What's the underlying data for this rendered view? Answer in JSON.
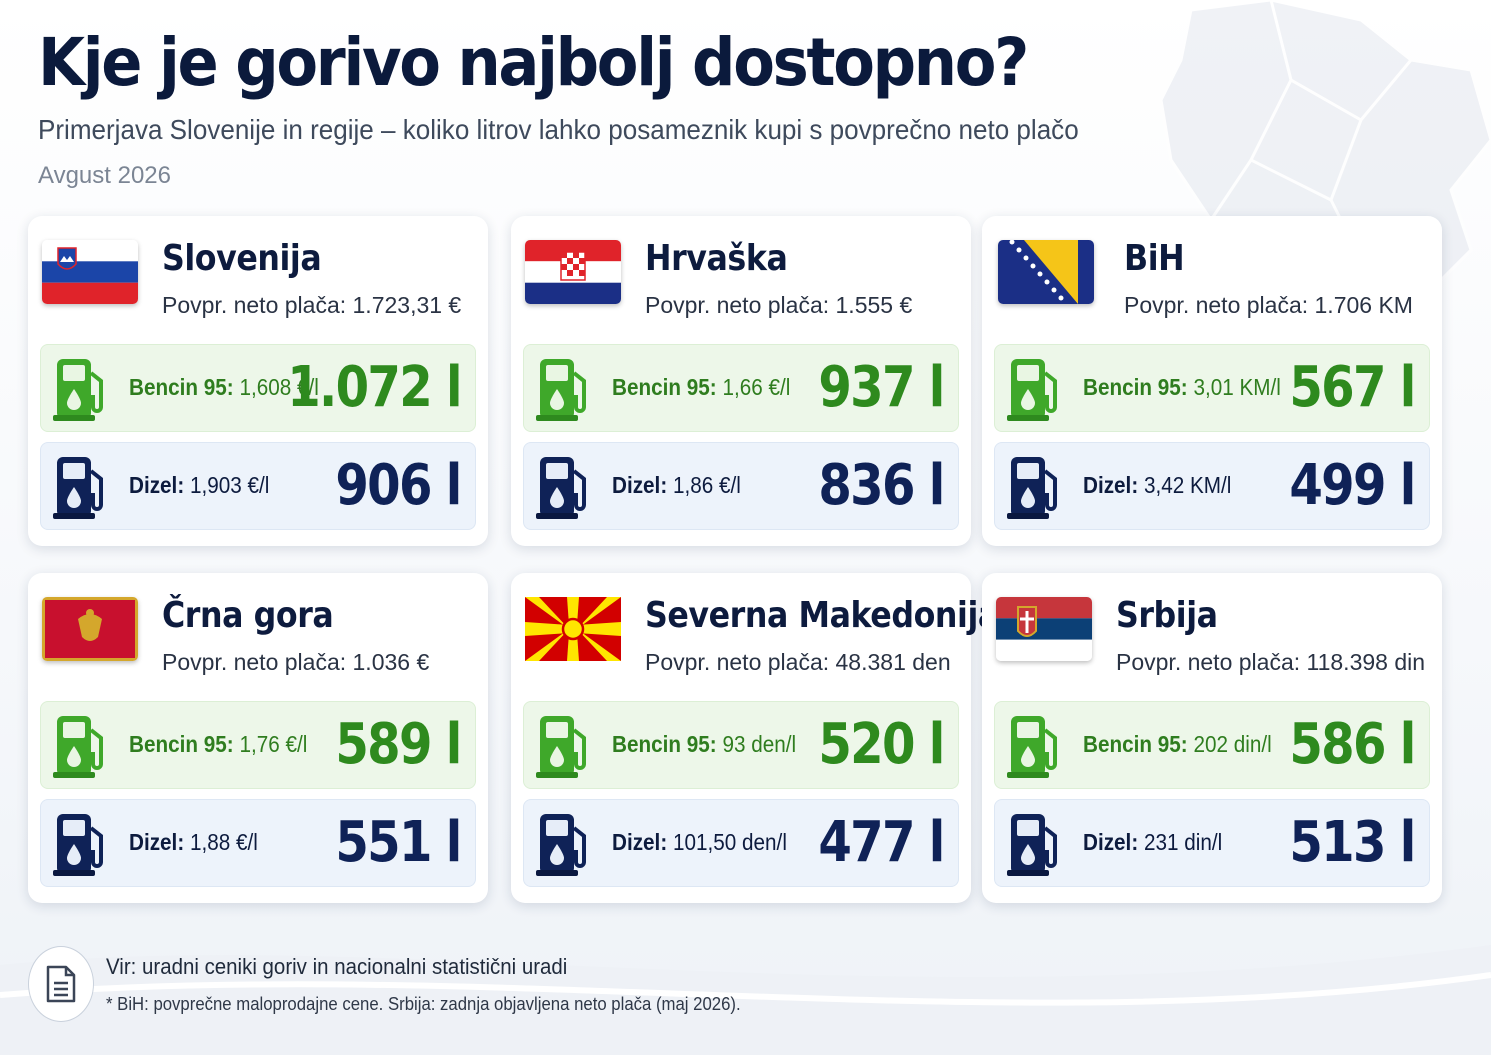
{
  "header": {
    "title": "Kje je gorivo najbolj dostopno?",
    "subtitle": "Primerjava Slovenije in regije – koliko litrov lahko posameznik kupi s povprečno neto plačo",
    "date": "Avgust 2026"
  },
  "colors": {
    "petrol_accent": "#2e8a1e",
    "diesel_accent": "#0f2257",
    "petrol_bg": "#edf7e9",
    "diesel_bg": "#edf3fb"
  },
  "countries": [
    {
      "name": "Slovenija",
      "flag_icon": "slovenia-flag-icon",
      "salary": "Povpr. neto plača: 1.723,31 €",
      "petrol": {
        "label": "Bencin 95:",
        "price": "1,608 €/l",
        "liters": "1.072 l"
      },
      "diesel": {
        "label": "Dizel:",
        "price": "1,903 €/l",
        "liters": "906 l"
      }
    },
    {
      "name": "Hrvaška",
      "flag_icon": "croatia-flag-icon",
      "salary": "Povpr. neto plača: 1.555 €",
      "petrol": {
        "label": "Bencin 95:",
        "price": "1,66 €/l",
        "liters": "937 l"
      },
      "diesel": {
        "label": "Dizel:",
        "price": "1,86 €/l",
        "liters": "836 l"
      }
    },
    {
      "name": "BiH",
      "flag_icon": "bosnia-flag-icon",
      "salary": "Povpr. neto plača: 1.706 KM",
      "petrol": {
        "label": "Bencin 95:",
        "price": "3,01 KM/l",
        "liters": "567 l"
      },
      "diesel": {
        "label": "Dizel:",
        "price": "3,42 KM/l",
        "liters": "499 l"
      }
    },
    {
      "name": "Črna gora",
      "flag_icon": "montenegro-flag-icon",
      "salary": "Povpr. neto plača: 1.036 €",
      "petrol": {
        "label": "Bencin 95:",
        "price": "1,76 €/l",
        "liters": "589 l"
      },
      "diesel": {
        "label": "Dizel:",
        "price": "1,88 €/l",
        "liters": "551 l"
      }
    },
    {
      "name": "Severna Makedonija",
      "flag_icon": "north-macedonia-flag-icon",
      "salary": "Povpr. neto plača: 48.381 den",
      "petrol": {
        "label": "Bencin 95:",
        "price": "93 den/l",
        "liters": "520 l"
      },
      "diesel": {
        "label": "Dizel:",
        "price": "101,50 den/l",
        "liters": "477 l"
      }
    },
    {
      "name": "Srbija",
      "flag_icon": "serbia-flag-icon",
      "salary": "Povpr. neto plača: 118.398 din",
      "petrol": {
        "label": "Bencin 95:",
        "price": "202 din/l",
        "liters": "586 l"
      },
      "diesel": {
        "label": "Dizel:",
        "price": "231 din/l",
        "liters": "513 l"
      }
    }
  ],
  "footer": {
    "icon": "document-icon",
    "source": "Vir: uradni ceniki goriv in nacionalni statistični uradi",
    "note": "* BiH: povprečne maloprodajne cene. Srbija: zadnja objavljena neto plača (maj 2026)."
  }
}
